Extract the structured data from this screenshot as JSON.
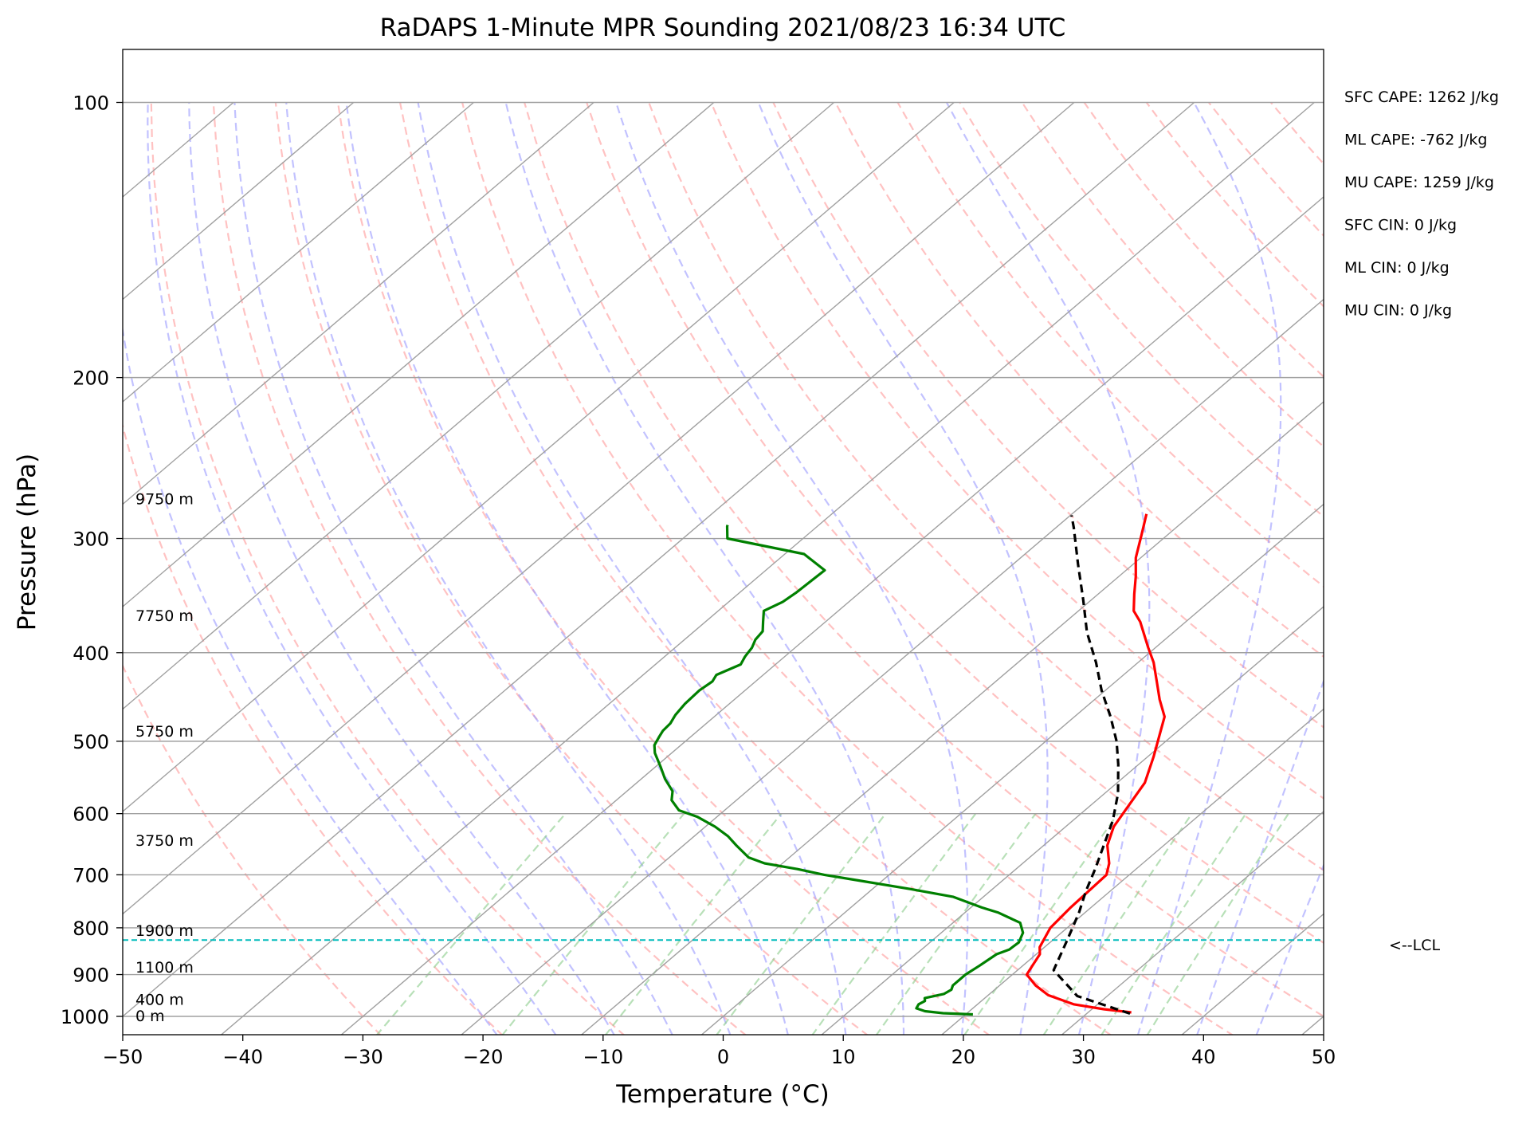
{
  "chart_data": {
    "type": "line",
    "title": "RaDAPS 1-Minute MPR Sounding 2021/08/23 16:34 UTC",
    "xlabel": "Temperature (°C)",
    "ylabel": "Pressure (hPa)",
    "xlim": [
      -50,
      50
    ],
    "ylim": [
      1050,
      100
    ],
    "y_scale": "log",
    "skew": "skew-T log-P",
    "x_ticks": [
      "−50",
      "−40",
      "−30",
      "−20",
      "−10",
      "0",
      "10",
      "20",
      "30",
      "40",
      "50"
    ],
    "y_ticks": [
      "100",
      "200",
      "300",
      "400",
      "500",
      "600",
      "700",
      "800",
      "900",
      "1000"
    ],
    "height_labels": [
      {
        "text": "0 m",
        "pressure": 1000
      },
      {
        "text": "400 m",
        "pressure": 960
      },
      {
        "text": "1100 m",
        "pressure": 885
      },
      {
        "text": "1900 m",
        "pressure": 807
      },
      {
        "text": "3750 m",
        "pressure": 643
      },
      {
        "text": "5750 m",
        "pressure": 488
      },
      {
        "text": "7750 m",
        "pressure": 365
      },
      {
        "text": "9750 m",
        "pressure": 272
      }
    ],
    "stats": [
      "SFC CAPE: 1262 J/kg",
      "ML CAPE: -762 J/kg",
      "MU CAPE: 1259 J/kg",
      "SFC CIN: 0 J/kg",
      "ML CIN: 0 J/kg",
      "MU CIN: 0 J/kg"
    ],
    "lcl": {
      "label": "<--LCL",
      "pressure": 825
    },
    "series": [
      {
        "role": "temperature",
        "color": "#ff0000",
        "points": [
          [
            33.6,
            990
          ],
          [
            31,
            982
          ],
          [
            28,
            970
          ],
          [
            25,
            948
          ],
          [
            23,
            925
          ],
          [
            21.2,
            900
          ],
          [
            20.8,
            880
          ],
          [
            20.3,
            855
          ],
          [
            19.6,
            840
          ],
          [
            18.6,
            800
          ],
          [
            18.3,
            760
          ],
          [
            18.1,
            700
          ],
          [
            17.2,
            680
          ],
          [
            15.3,
            650
          ],
          [
            14,
            620
          ],
          [
            12.3,
            555
          ],
          [
            10.5,
            520
          ],
          [
            7.5,
            470
          ],
          [
            5.4,
            450
          ],
          [
            3.4,
            430
          ],
          [
            1.3,
            410
          ],
          [
            -0.6,
            395
          ],
          [
            -3.8,
            370
          ],
          [
            -5.4,
            360
          ],
          [
            -7,
            345
          ],
          [
            -8.6,
            330
          ],
          [
            -10.4,
            315
          ],
          [
            -12.2,
            297
          ],
          [
            -13.8,
            282
          ]
        ]
      },
      {
        "role": "dewpoint",
        "color": "#008000",
        "points": [
          [
            20.6,
            995
          ],
          [
            18,
            992
          ],
          [
            16.3,
            987
          ],
          [
            15.3,
            980
          ],
          [
            15.1,
            970
          ],
          [
            15.3,
            962
          ],
          [
            15,
            955
          ],
          [
            16.2,
            945
          ],
          [
            16.4,
            935
          ],
          [
            16.1,
            925
          ],
          [
            16.1,
            900
          ],
          [
            16.4,
            880
          ],
          [
            16.7,
            855
          ],
          [
            17.3,
            845
          ],
          [
            17.4,
            830
          ],
          [
            16.8,
            810
          ],
          [
            15.6,
            790
          ],
          [
            12.8,
            770
          ],
          [
            10.9,
            760
          ],
          [
            7.5,
            740
          ],
          [
            3,
            725
          ],
          [
            -2,
            710
          ],
          [
            -5.4,
            700
          ],
          [
            -8.2,
            690
          ],
          [
            -11.5,
            680
          ],
          [
            -13.4,
            670
          ],
          [
            -15.6,
            650
          ],
          [
            -17.2,
            635
          ],
          [
            -19.2,
            620
          ],
          [
            -21.6,
            605
          ],
          [
            -23.8,
            595
          ],
          [
            -25.4,
            580
          ],
          [
            -26.2,
            567
          ],
          [
            -28,
            550
          ],
          [
            -29.6,
            533
          ],
          [
            -31.4,
            515
          ],
          [
            -32.2,
            505
          ],
          [
            -32.6,
            495
          ],
          [
            -32.9,
            487
          ],
          [
            -33,
            478
          ],
          [
            -33.4,
            468
          ],
          [
            -33.7,
            455
          ],
          [
            -33.8,
            440
          ],
          [
            -33.6,
            430
          ],
          [
            -33.9,
            423
          ],
          [
            -32.9,
            412
          ],
          [
            -33.3,
            404
          ],
          [
            -33.6,
            395
          ],
          [
            -34.1,
            387
          ],
          [
            -34.3,
            379
          ],
          [
            -35.2,
            370
          ],
          [
            -36.2,
            360
          ],
          [
            -35.5,
            352
          ],
          [
            -35.3,
            344
          ],
          [
            -35.2,
            335
          ],
          [
            -35.1,
            325
          ],
          [
            -38.4,
            312
          ],
          [
            -46.3,
            300
          ],
          [
            -47.5,
            291
          ],
          [
            -47.6,
            290
          ]
        ]
      },
      {
        "role": "parcel",
        "color": "#000000",
        "points": [
          [
            33.6,
            993
          ],
          [
            27.5,
            950
          ],
          [
            23,
            890
          ],
          [
            21.2,
            825
          ],
          [
            19.5,
            770
          ],
          [
            18,
            730
          ],
          [
            16.6,
            690
          ],
          [
            15,
            650
          ],
          [
            13.3,
            610
          ],
          [
            11.1,
            570
          ],
          [
            8.3,
            530
          ],
          [
            5.9,
            500
          ],
          [
            3,
            470
          ],
          [
            -0.3,
            440
          ],
          [
            -3.5,
            410
          ],
          [
            -7.2,
            380
          ],
          [
            -10.7,
            350
          ],
          [
            -14.6,
            320
          ],
          [
            -18.5,
            292
          ],
          [
            -19.9,
            283
          ]
        ]
      }
    ]
  }
}
